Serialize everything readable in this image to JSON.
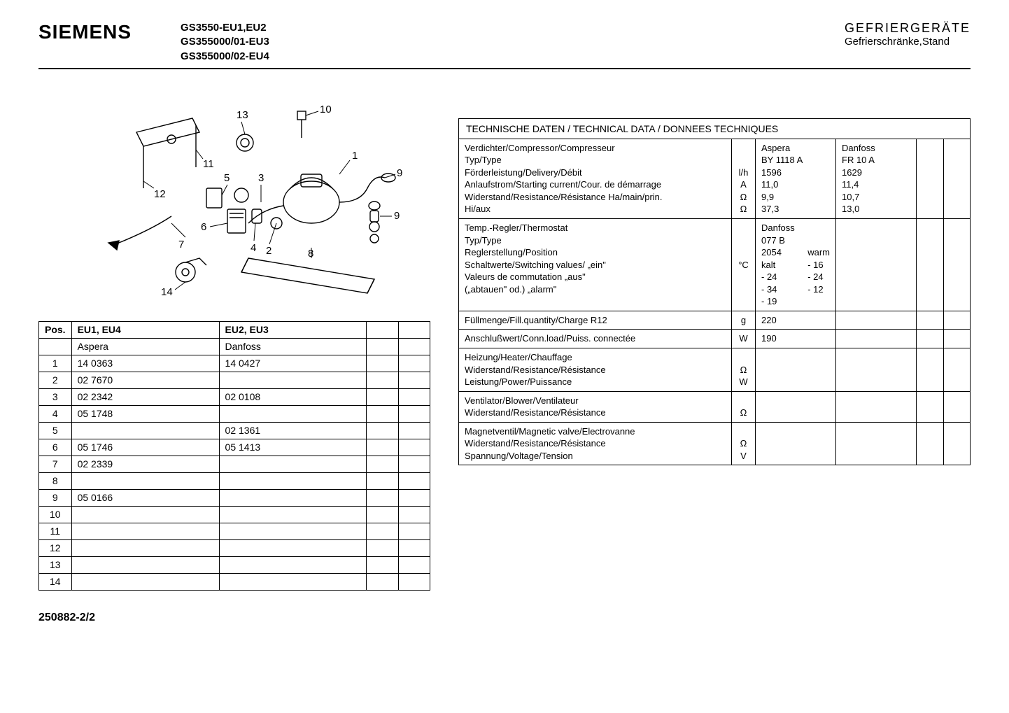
{
  "header": {
    "brand": "SIEMENS",
    "models": "GS3550-EU1,EU2\nGS355000/01-EU3\nGS355000/02-EU4",
    "right_title": "GEFRIERGERÄTE",
    "right_sub": "Gefrierschränke,Stand"
  },
  "diagram": {
    "callouts": [
      "1",
      "2",
      "3",
      "4",
      "5",
      "6",
      "7",
      "8",
      "9",
      "9",
      "10",
      "11",
      "12",
      "13",
      "14"
    ]
  },
  "parts_table": {
    "headers": [
      "Pos.",
      "EU1, EU4",
      "EU2, EU3",
      "",
      ""
    ],
    "sub_headers": [
      "",
      "Aspera",
      "Danfoss",
      "",
      ""
    ],
    "rows": [
      [
        "1",
        "14 0363",
        "14 0427",
        "",
        ""
      ],
      [
        "2",
        "02 7670",
        "",
        "",
        ""
      ],
      [
        "3",
        "02 2342",
        "02 0108",
        "",
        ""
      ],
      [
        "4",
        "05 1748",
        "",
        "",
        ""
      ],
      [
        "5",
        "",
        "02 1361",
        "",
        ""
      ],
      [
        "6",
        "05 1746",
        "05 1413",
        "",
        ""
      ],
      [
        "7",
        "02 2339",
        "",
        "",
        ""
      ],
      [
        "8",
        "",
        "",
        "",
        ""
      ],
      [
        "9",
        "05 0166",
        "",
        "",
        ""
      ],
      [
        "10",
        "",
        "",
        "",
        ""
      ],
      [
        "11",
        "",
        "",
        "",
        ""
      ],
      [
        "12",
        "",
        "",
        "",
        ""
      ],
      [
        "13",
        "",
        "",
        "",
        ""
      ],
      [
        "14",
        "",
        "",
        "",
        ""
      ]
    ]
  },
  "tech": {
    "title": "TECHNISCHE DATEN / TECHNICAL DATA / DONNEES TECHNIQUES",
    "sections": [
      {
        "label": "Verdichter/Compressor/Compresseur\nTyp/Type\nFörderleistung/Delivery/Débit\nAnlaufstrom/Starting current/Cour. de démarrage\nWiderstand/Resistance/Résistance    Ha/main/prin.\n                                                          Hi/aux",
        "units": "\n\nl/h\nA\nΩ\nΩ",
        "col1": "Aspera\nBY 1118 A\n1596\n11,0\n9,9\n37,3",
        "col2": "Danfoss\nFR 10 A\n1629\n11,4\n10,7\n13,0",
        "col3": "",
        "col4": ""
      },
      {
        "label": "Temp.-Regler/Thermostat\nTyp/Type\nReglerstellung/Position\nSchaltwerte/Switching values/        „ein\"\nValeurs de commutation                „aus\"\n              („abtauen\" od.)                  „alarm\"",
        "units": "\n\n\n°C\n\n",
        "col1_two": {
          "left": "Danfoss\n077 B 2054\nkalt\n- 24\n- 34\n- 19",
          "right": "\n\nwarm\n- 16\n- 24\n- 12"
        },
        "col2": "",
        "col3": "",
        "col4": ""
      },
      {
        "label": "Füllmenge/Fill.quantity/Charge        R12",
        "units": "g",
        "col1": "220",
        "col2": "",
        "col3": "",
        "col4": ""
      },
      {
        "label": "Anschlußwert/Conn.load/Puiss. connectée",
        "units": "W",
        "col1": "190",
        "col2": "",
        "col3": "",
        "col4": ""
      },
      {
        "label": "Heizung/Heater/Chauffage\nWiderstand/Resistance/Résistance\nLeistung/Power/Puissance",
        "units": "\nΩ\nW",
        "col1": "",
        "col2": "",
        "col3": "",
        "col4": ""
      },
      {
        "label": "Ventilator/Blower/Ventilateur\nWiderstand/Resistance/Résistance",
        "units": "\nΩ",
        "col1": "",
        "col2": "",
        "col3": "",
        "col4": ""
      },
      {
        "label": "Magnetventil/Magnetic valve/Electrovanne\nWiderstand/Resistance/Résistance\nSpannung/Voltage/Tension",
        "units": "\nΩ\nV",
        "col1": "",
        "col2": "",
        "col3": "",
        "col4": ""
      }
    ]
  },
  "page_num": "250882-2/2"
}
